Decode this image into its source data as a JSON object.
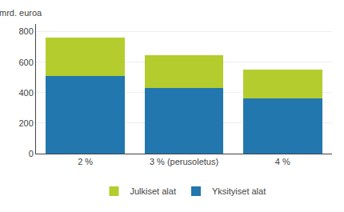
{
  "chart_data": {
    "type": "bar",
    "stacked": true,
    "ylabel": "mrd. euroa",
    "categories": [
      "2 %",
      "3 % (perusoletus)",
      "4 %"
    ],
    "series": [
      {
        "name": "Yksityiset alat",
        "color": "#2277ae",
        "values": [
          510,
          430,
          360
        ]
      },
      {
        "name": "Julkiset alat",
        "color": "#b5cc2e",
        "values": [
          250,
          215,
          190
        ]
      }
    ],
    "ylim": [
      0,
      850
    ],
    "yticks": [
      0,
      200,
      400,
      600,
      800
    ],
    "grid": true,
    "legend": "bottom"
  }
}
